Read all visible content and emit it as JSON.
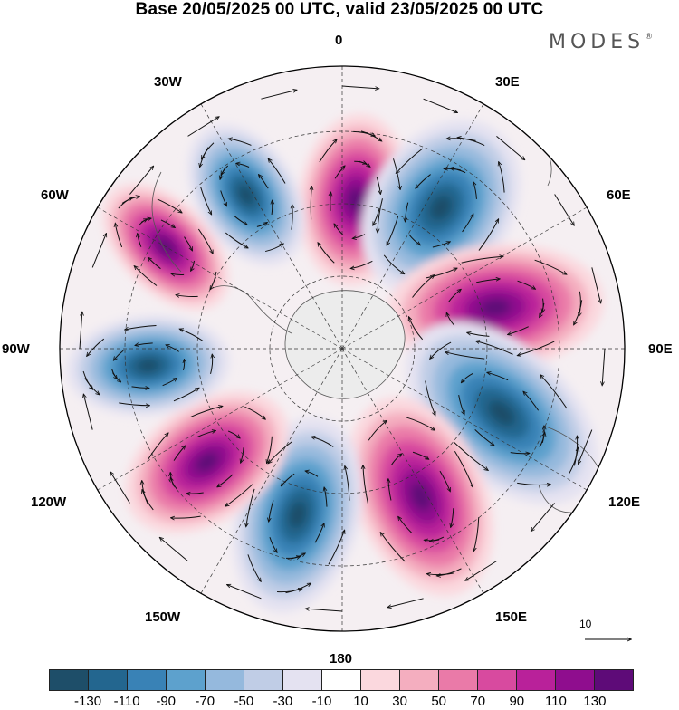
{
  "title": "Base 20/05/2025 00 UTC, valid 23/05/2025 00 UTC",
  "brand": "MODES",
  "brand_mark": "®",
  "longitude_labels": {
    "lon_0": "0",
    "lon_30e": "30E",
    "lon_60e": "60E",
    "lon_90e": "90E",
    "lon_120e": "120E",
    "lon_150e": "150E",
    "lon_180": "180",
    "lon_150w": "150W",
    "lon_120w": "120W",
    "lon_90w": "90W",
    "lon_60w": "60W",
    "lon_30w": "30W"
  },
  "reference_vector": "10",
  "colorbar": {
    "colors": [
      "#1e4e69",
      "#23668f",
      "#3982b6",
      "#5da1cd",
      "#95b9dd",
      "#c0cde6",
      "#e4e2f1",
      "#ffffff",
      "#fbd8de",
      "#f4aebf",
      "#ea7aa8",
      "#d84a9f",
      "#b9219a",
      "#8f0d8e",
      "#5e0b78"
    ],
    "tick_labels": [
      "-130",
      "-110",
      "-90",
      "-70",
      "-50",
      "-30",
      "-10",
      "10",
      "30",
      "50",
      "70",
      "90",
      "110",
      "130"
    ]
  },
  "colors": {
    "antarctica": "#ececec",
    "coastline": "#555555",
    "vector": "#111111"
  }
}
